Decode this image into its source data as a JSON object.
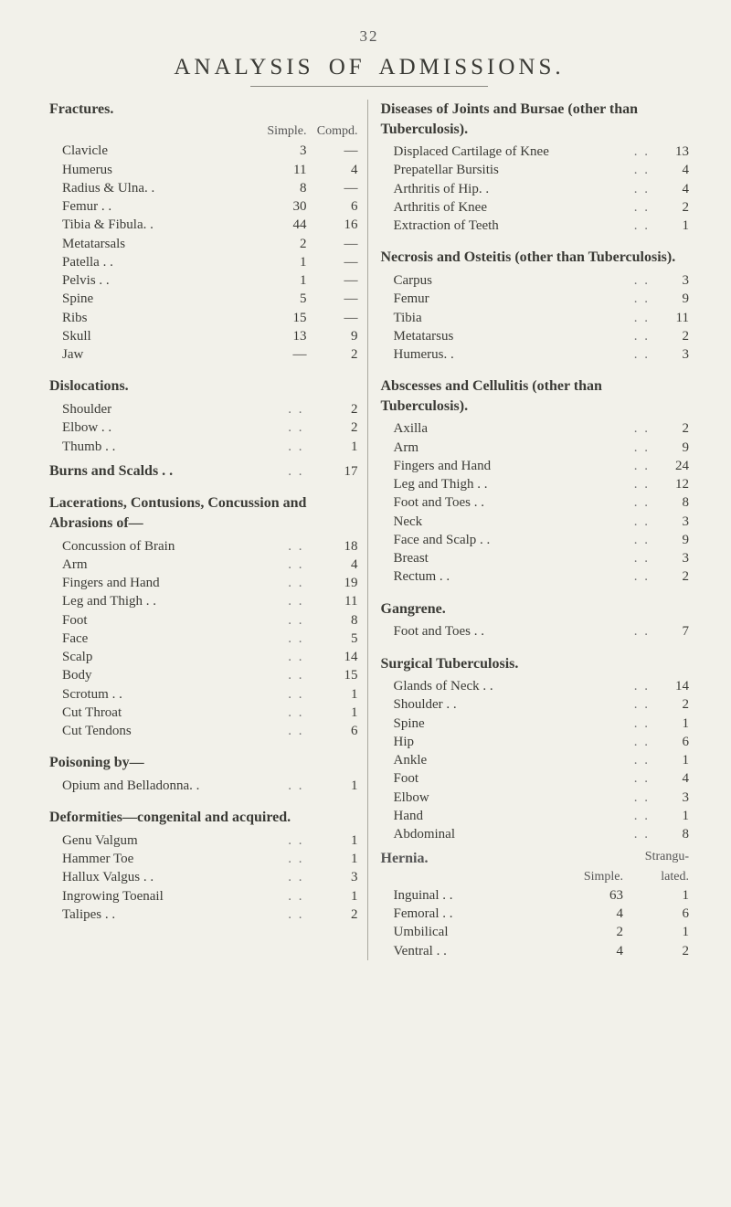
{
  "page_number": "32",
  "title": "ANALYSIS OF ADMISSIONS.",
  "colors": {
    "page_bg": "#f2f1ea",
    "text": "#3b3b36",
    "rule": "#8a8a82",
    "col_rule": "#a9a99f"
  },
  "left": {
    "fractures": {
      "heading": "Fractures.",
      "col_labels": [
        "Simple.",
        "Compd."
      ],
      "rows": [
        {
          "label": "Clavicle",
          "simple": "3",
          "compd": "—"
        },
        {
          "label": "Humerus",
          "simple": "11",
          "compd": "4"
        },
        {
          "label": "Radius & Ulna. .",
          "simple": "8",
          "compd": "—"
        },
        {
          "label": "Femur . .",
          "simple": "30",
          "compd": "6"
        },
        {
          "label": "Tibia & Fibula. .",
          "simple": "44",
          "compd": "16"
        },
        {
          "label": "Metatarsals",
          "simple": "2",
          "compd": "—"
        },
        {
          "label": "Patella . .",
          "simple": "1",
          "compd": "—"
        },
        {
          "label": "Pelvis  . .",
          "simple": "1",
          "compd": "—"
        },
        {
          "label": "Spine",
          "simple": "5",
          "compd": "—"
        },
        {
          "label": "Ribs",
          "simple": "15",
          "compd": "—"
        },
        {
          "label": "Skull",
          "simple": "13",
          "compd": "9"
        },
        {
          "label": "Jaw",
          "simple": "—",
          "compd": "2"
        }
      ]
    },
    "dislocations": {
      "heading": "Dislocations.",
      "rows": [
        {
          "label": "Shoulder",
          "val": "2"
        },
        {
          "label": "Elbow . .",
          "val": "2"
        },
        {
          "label": "Thumb . .",
          "val": "1"
        }
      ]
    },
    "burns": {
      "heading": "Burns and Scalds . .",
      "val": "17"
    },
    "lacerations": {
      "heading": "Lacerations, Contusions, Concussion and Abrasions of—",
      "rows": [
        {
          "label": "Concussion of Brain",
          "val": "18"
        },
        {
          "label": "Arm",
          "val": "4"
        },
        {
          "label": "Fingers and Hand",
          "val": "19"
        },
        {
          "label": "Leg and Thigh . .",
          "val": "11"
        },
        {
          "label": "Foot",
          "val": "8"
        },
        {
          "label": "Face",
          "val": "5"
        },
        {
          "label": "Scalp",
          "val": "14"
        },
        {
          "label": "Body",
          "val": "15"
        },
        {
          "label": "Scrotum . .",
          "val": "1"
        },
        {
          "label": "Cut Throat",
          "val": "1"
        },
        {
          "label": "Cut Tendons",
          "val": "6"
        }
      ]
    },
    "poisoning": {
      "heading": "Poisoning by—",
      "rows": [
        {
          "label": "Opium and Belladonna. .",
          "val": "1"
        }
      ]
    },
    "deformities": {
      "heading": "Deformities—congenital and acquired.",
      "rows": [
        {
          "label": "Genu Valgum",
          "val": "1"
        },
        {
          "label": "Hammer Toe",
          "val": "1"
        },
        {
          "label": "Hallux Valgus . .",
          "val": "3"
        },
        {
          "label": "Ingrowing Toenail",
          "val": "1"
        },
        {
          "label": "Talipes . .",
          "val": "2"
        }
      ]
    }
  },
  "right": {
    "joints": {
      "heading": "Diseases of Joints and Bursae (other than Tuberculosis).",
      "rows": [
        {
          "label": "Displaced Cartilage of Knee",
          "val": "13"
        },
        {
          "label": "Prepatellar Bursitis",
          "val": "4"
        },
        {
          "label": "Arthritis of Hip. .",
          "val": "4"
        },
        {
          "label": "Arthritis of Knee",
          "val": "2"
        },
        {
          "label": "Extraction of Teeth",
          "val": "1"
        }
      ]
    },
    "necrosis": {
      "heading": "Necrosis and Osteitis (other than Tuberculosis).",
      "rows": [
        {
          "label": "Carpus",
          "val": "3"
        },
        {
          "label": "Femur",
          "val": "9"
        },
        {
          "label": "Tibia",
          "val": "11"
        },
        {
          "label": "Metatarsus",
          "val": "2"
        },
        {
          "label": "Humerus. .",
          "val": "3"
        }
      ]
    },
    "abscesses": {
      "heading": "Abscesses and Cellulitis (other than Tuberculosis).",
      "rows": [
        {
          "label": "Axilla",
          "val": "2"
        },
        {
          "label": "Arm",
          "val": "9"
        },
        {
          "label": "Fingers and Hand",
          "val": "24"
        },
        {
          "label": "Leg and Thigh . .",
          "val": "12"
        },
        {
          "label": "Foot and Toes . .",
          "val": "8"
        },
        {
          "label": "Neck",
          "val": "3"
        },
        {
          "label": "Face and Scalp . .",
          "val": "9"
        },
        {
          "label": "Breast",
          "val": "3"
        },
        {
          "label": "Rectum . .",
          "val": "2"
        }
      ]
    },
    "gangrene": {
      "heading": "Gangrene.",
      "rows": [
        {
          "label": "Foot and Toes . .",
          "val": "7"
        }
      ]
    },
    "surgical_tb": {
      "heading": "Surgical Tuberculosis.",
      "rows": [
        {
          "label": "Glands of Neck . .",
          "val": "14"
        },
        {
          "label": "Shoulder . .",
          "val": "2"
        },
        {
          "label": "Spine",
          "val": "1"
        },
        {
          "label": "Hip",
          "val": "6"
        },
        {
          "label": "Ankle",
          "val": "1"
        },
        {
          "label": "Foot",
          "val": "4"
        },
        {
          "label": "Elbow",
          "val": "3"
        },
        {
          "label": "Hand",
          "val": "1"
        },
        {
          "label": "Abdominal",
          "val": "8"
        }
      ]
    },
    "hernia": {
      "heading": "Hernia.",
      "col_labels": [
        "Simple.",
        "Strangu-\nlated."
      ],
      "col1_label": "Simple.",
      "col2_label_top": "Strangu-",
      "col2_label_bot": "lated.",
      "rows": [
        {
          "label": "Inguinal . .",
          "simple": "63",
          "strang": "1"
        },
        {
          "label": "Femoral . .",
          "simple": "4",
          "strang": "6"
        },
        {
          "label": "Umbilical",
          "simple": "2",
          "strang": "1"
        },
        {
          "label": "Ventral . .",
          "simple": "4",
          "strang": "2"
        }
      ]
    }
  }
}
